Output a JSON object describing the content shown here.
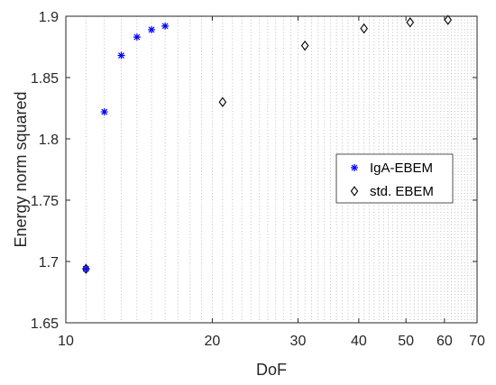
{
  "chart_data": {
    "type": "scatter",
    "xlabel": "DoF",
    "ylabel": "Energy norm squared",
    "x_scale": "log",
    "xlim": [
      10,
      70
    ],
    "ylim": [
      1.65,
      1.9
    ],
    "x_ticks": [
      10,
      20,
      30,
      40,
      50,
      60,
      70
    ],
    "x_tick_labels": [
      "10",
      "20",
      "30",
      "40",
      "50",
      "60",
      "70"
    ],
    "y_ticks": [
      1.65,
      1.7,
      1.75,
      1.8,
      1.85,
      1.9
    ],
    "y_tick_labels": [
      "1.65",
      "1.7",
      "1.75",
      "1.8",
      "1.85",
      "1.9"
    ],
    "grid": "x-minor-dotted",
    "legend_position": "right",
    "series": [
      {
        "name": "IgA-EBEM",
        "marker": "asterisk",
        "color": "#0000ff",
        "x": [
          11,
          12,
          13,
          14,
          15,
          16
        ],
        "y": [
          1.694,
          1.822,
          1.868,
          1.883,
          1.889,
          1.892
        ]
      },
      {
        "name": "std. EBEM",
        "marker": "diamond",
        "color": "#000000",
        "x": [
          11,
          21,
          31,
          41,
          51,
          61
        ],
        "y": [
          1.694,
          1.83,
          1.876,
          1.89,
          1.895,
          1.897
        ]
      }
    ]
  }
}
